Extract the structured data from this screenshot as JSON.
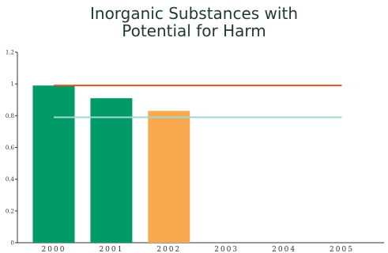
{
  "chart_data": {
    "type": "bar",
    "title": "Inorganic Substances with\nPotential for Harm",
    "xlabel": "",
    "ylabel": "",
    "categories": [
      "2000",
      "2001",
      "2002",
      "2003",
      "2004",
      "2005"
    ],
    "values": [
      0.99,
      0.91,
      0.83,
      null,
      null,
      null
    ],
    "bar_colors": [
      "#009a66",
      "#009a66",
      "#f9a94d",
      null,
      null,
      null
    ],
    "reference_lines": [
      {
        "value": 0.99,
        "color": "#e0542b",
        "from": "2000",
        "to": "2005"
      },
      {
        "value": 0.79,
        "color": "#9fd6d6",
        "from": "2000",
        "to": "2005"
      }
    ],
    "ylim": [
      0,
      1.2
    ],
    "yticks": [
      0,
      0.2,
      0.4,
      0.6,
      0.8,
      1,
      1.2
    ],
    "ytick_labels": [
      "0",
      "0.2",
      "0.4",
      "0.6",
      "0.8",
      "1",
      "1.2"
    ],
    "grid": false,
    "legend": "none"
  }
}
